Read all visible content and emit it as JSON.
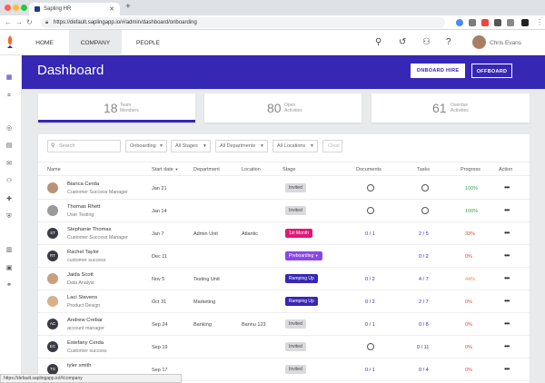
{
  "browser": {
    "tab_title": "Sapling HR",
    "url": "https://default.saplingapp.io/#/admin/dashboard/onboarding",
    "status_url": "https://default.saplingapp.io/#/company"
  },
  "topnav": {
    "tabs": [
      "HOME",
      "COMPANY",
      "PEOPLE"
    ],
    "user_name": "Chris Evans"
  },
  "header": {
    "title": "Dashboard",
    "onboard_hire": "ONBOARD HIRE",
    "offboard": "OFFBOARD"
  },
  "stats": [
    {
      "value": "18",
      "label1": "Team",
      "label2": "Members"
    },
    {
      "value": "80",
      "label1": "Open",
      "label2": "Activities"
    },
    {
      "value": "61",
      "label1": "Overdue",
      "label2": "Activities"
    }
  ],
  "filters": {
    "search_placeholder": "Search",
    "onboarding": "Onboarding",
    "stages": "All Stages",
    "departments": "All Departments",
    "locations": "All Locations",
    "clear": "Clear"
  },
  "columns": [
    "Name",
    "Start date",
    "Department",
    "Location",
    "Stage",
    "Documents",
    "Tasks",
    "Progress",
    "Action"
  ],
  "rows": [
    {
      "initials": "",
      "name": "Bianca Cerda",
      "title": "Customer Success Manager",
      "start": "Jan 21",
      "dept": "",
      "loc": "",
      "stage": "Invited",
      "docs": "",
      "tasks": "",
      "progress": "100%"
    },
    {
      "initials": "",
      "name": "Thomas Rhett",
      "title": "User Testing",
      "start": "Jan 14",
      "dept": "",
      "loc": "",
      "stage": "Invited",
      "docs": "",
      "tasks": "",
      "progress": "100%"
    },
    {
      "initials": "ST",
      "name": "Stephanie Thomas",
      "title": "Customer Success Manager",
      "start": "Jan 7",
      "dept": "Admin Unit",
      "loc": "Atlantic",
      "stage": "1st Month",
      "docs": "0 / 1",
      "tasks": "2 / 5",
      "progress": "33%"
    },
    {
      "initials": "RT",
      "name": "Rachel Taylor",
      "title": "customer success",
      "start": "Dec 11",
      "dept": "",
      "loc": "",
      "stage": "Preboarding",
      "docs": "",
      "tasks": "0 / 2",
      "progress": "0%"
    },
    {
      "initials": "",
      "name": "Jaida Scott",
      "title": "Data Analyst",
      "start": "Nov 5",
      "dept": "Testing Unit",
      "loc": "",
      "stage": "Ramping Up",
      "docs": "0 / 2",
      "tasks": "4 / 7",
      "progress": "44%"
    },
    {
      "initials": "",
      "name": "Laci Stevens",
      "title": "Product Design",
      "start": "Oct 31",
      "dept": "Marketing",
      "loc": "",
      "stage": "Ramping Up",
      "docs": "0 / 2",
      "tasks": "2 / 7",
      "progress": "0%"
    },
    {
      "initials": "AC",
      "name": "Andrew Crebar",
      "title": "account manager",
      "start": "Sep 24",
      "dept": "Banking",
      "loc": "Bannu 123",
      "stage": "Invited",
      "docs": "0 / 1",
      "tasks": "0 / 8",
      "progress": "0%"
    },
    {
      "initials": "EC",
      "name": "Estefany Cerda",
      "title": "Customer success",
      "start": "Sep 19",
      "dept": "",
      "loc": "",
      "stage": "Invited",
      "docs": "",
      "tasks": "0 / 11",
      "progress": "0%"
    },
    {
      "initials": "TS",
      "name": "tyler smith",
      "title": "",
      "start": "Sep 17",
      "dept": "",
      "loc": "",
      "stage": "Invited",
      "docs": "0 / 1",
      "tasks": "0 / 4",
      "progress": "0%"
    }
  ],
  "colors": {
    "brand": "#3627b4",
    "pink": "#e11878",
    "purple": "#8b47e6",
    "green": "#3aa34a",
    "orange": "#f08a43",
    "red": "#e04a3a"
  }
}
